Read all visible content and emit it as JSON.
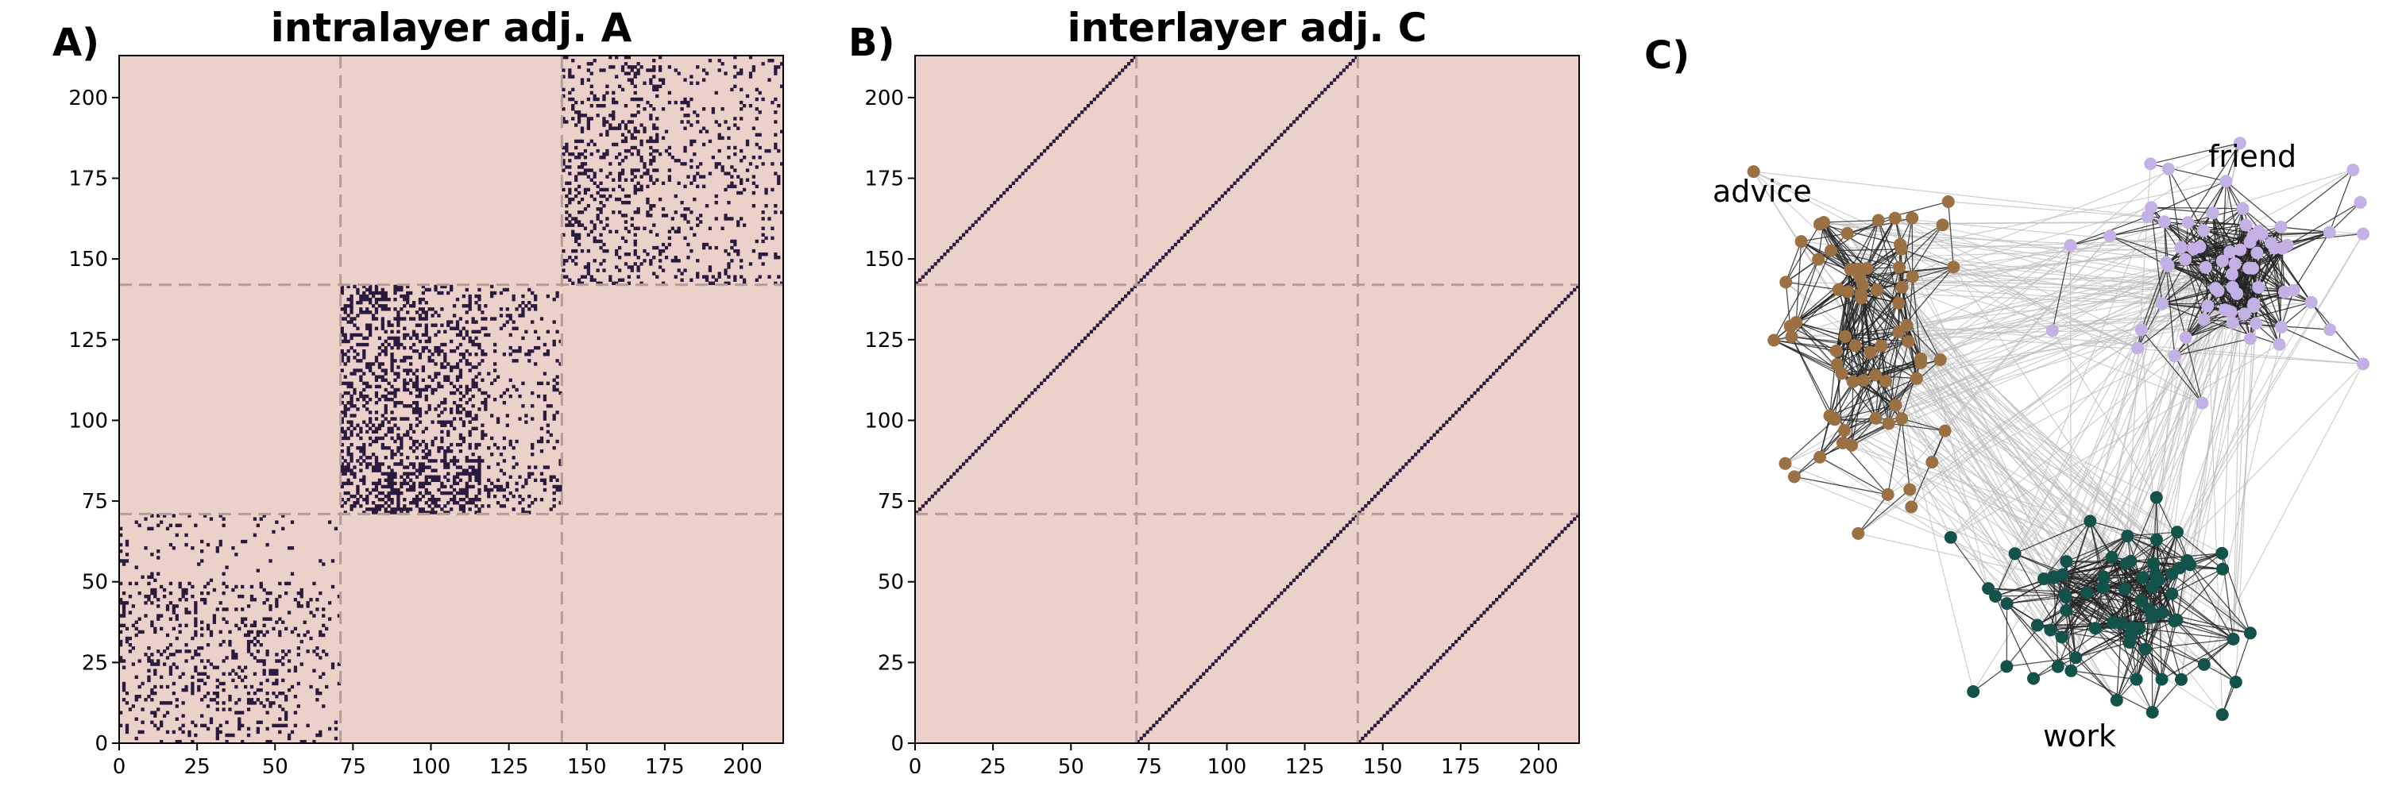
{
  "colors": {
    "background": "#ecd1ca",
    "matrix_filled": "#2a1a3e",
    "block_divider": "#b59e97",
    "advice_node": "#9b7043",
    "friend_node": "#c3b1e6",
    "work_node": "#13524a",
    "intra_edge": "#222222",
    "inter_edge": "#bdbdbd"
  },
  "chart_data": [
    {
      "type": "heatmap",
      "panel_label": "A)",
      "title": "intralayer adj. A",
      "xlabel": "",
      "ylabel": "",
      "n": 213,
      "block_boundaries": [
        71,
        142
      ],
      "xlim": [
        0,
        213
      ],
      "ylim": [
        0,
        213
      ],
      "xticks": [
        0,
        25,
        50,
        75,
        100,
        125,
        150,
        175,
        200
      ],
      "yticks": [
        0,
        25,
        50,
        75,
        100,
        125,
        150,
        175,
        200
      ],
      "xtick_labels": [
        "0",
        "25",
        "50",
        "75",
        "100",
        "125",
        "150",
        "175",
        "200"
      ],
      "ytick_labels": [
        "0",
        "25",
        "50",
        "75",
        "100",
        "125",
        "150",
        "175",
        "200"
      ],
      "structure": "block-diagonal sparse binary matrix; nonzero entries only inside the three diagonal blocks [0,71), [71,142), [142,213)",
      "block_density": [
        0.16,
        0.24,
        0.17
      ]
    },
    {
      "type": "heatmap",
      "panel_label": "B)",
      "title": "interlayer adj. C",
      "xlabel": "",
      "ylabel": "",
      "n": 213,
      "block_boundaries": [
        71,
        142
      ],
      "xlim": [
        0,
        213
      ],
      "ylim": [
        0,
        213
      ],
      "xticks": [
        0,
        25,
        50,
        75,
        100,
        125,
        150,
        175,
        200
      ],
      "yticks": [
        0,
        25,
        50,
        75,
        100,
        125,
        150,
        175,
        200
      ],
      "xtick_labels": [
        "0",
        "25",
        "50",
        "75",
        "100",
        "125",
        "150",
        "175",
        "200"
      ],
      "ytick_labels": [
        "0",
        "25",
        "50",
        "75",
        "100",
        "125",
        "150",
        "175",
        "200"
      ],
      "structure": "binary matrix with ones at |i - j| = 71 and |i - j| = 142 (diagonal lines in off-diagonal blocks)",
      "offsets": [
        71,
        142
      ]
    },
    {
      "type": "network",
      "panel_label": "C)",
      "layers": [
        {
          "name": "advice",
          "label": "advice",
          "color": "#9b7043",
          "node_count": 71
        },
        {
          "name": "friend",
          "label": "friend",
          "color": "#c3b1e6",
          "node_count": 71
        },
        {
          "name": "work",
          "label": "work",
          "color": "#13524a",
          "node_count": 71
        }
      ]
    }
  ]
}
